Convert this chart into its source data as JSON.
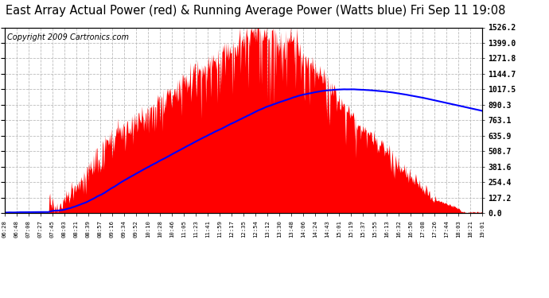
{
  "title": "East Array Actual Power (red) & Running Average Power (Watts blue) Fri Sep 11 19:08",
  "copyright": "Copyright 2009 Cartronics.com",
  "ylabel_right_ticks": [
    0.0,
    127.2,
    254.4,
    381.6,
    508.7,
    635.9,
    763.1,
    890.3,
    1017.5,
    1144.7,
    1271.8,
    1399.0,
    1526.2
  ],
  "ymax": 1526.2,
  "ymin": 0.0,
  "background_color": "#ffffff",
  "plot_bg_color": "#ffffff",
  "bar_color": "red",
  "avg_color": "blue",
  "grid_color": "#bbbbbb",
  "title_fontsize": 10.5,
  "copyright_fontsize": 7,
  "x_tick_labels": [
    "06:28",
    "06:48",
    "07:08",
    "07:27",
    "07:45",
    "08:03",
    "08:21",
    "08:39",
    "08:57",
    "09:16",
    "09:34",
    "09:52",
    "10:10",
    "10:28",
    "10:46",
    "11:05",
    "11:23",
    "11:41",
    "11:59",
    "12:17",
    "12:35",
    "12:54",
    "13:12",
    "13:30",
    "13:48",
    "14:06",
    "14:24",
    "14:43",
    "15:01",
    "15:19",
    "15:37",
    "15:55",
    "16:13",
    "16:32",
    "16:50",
    "17:08",
    "17:26",
    "17:44",
    "18:03",
    "18:21",
    "19:01"
  ]
}
